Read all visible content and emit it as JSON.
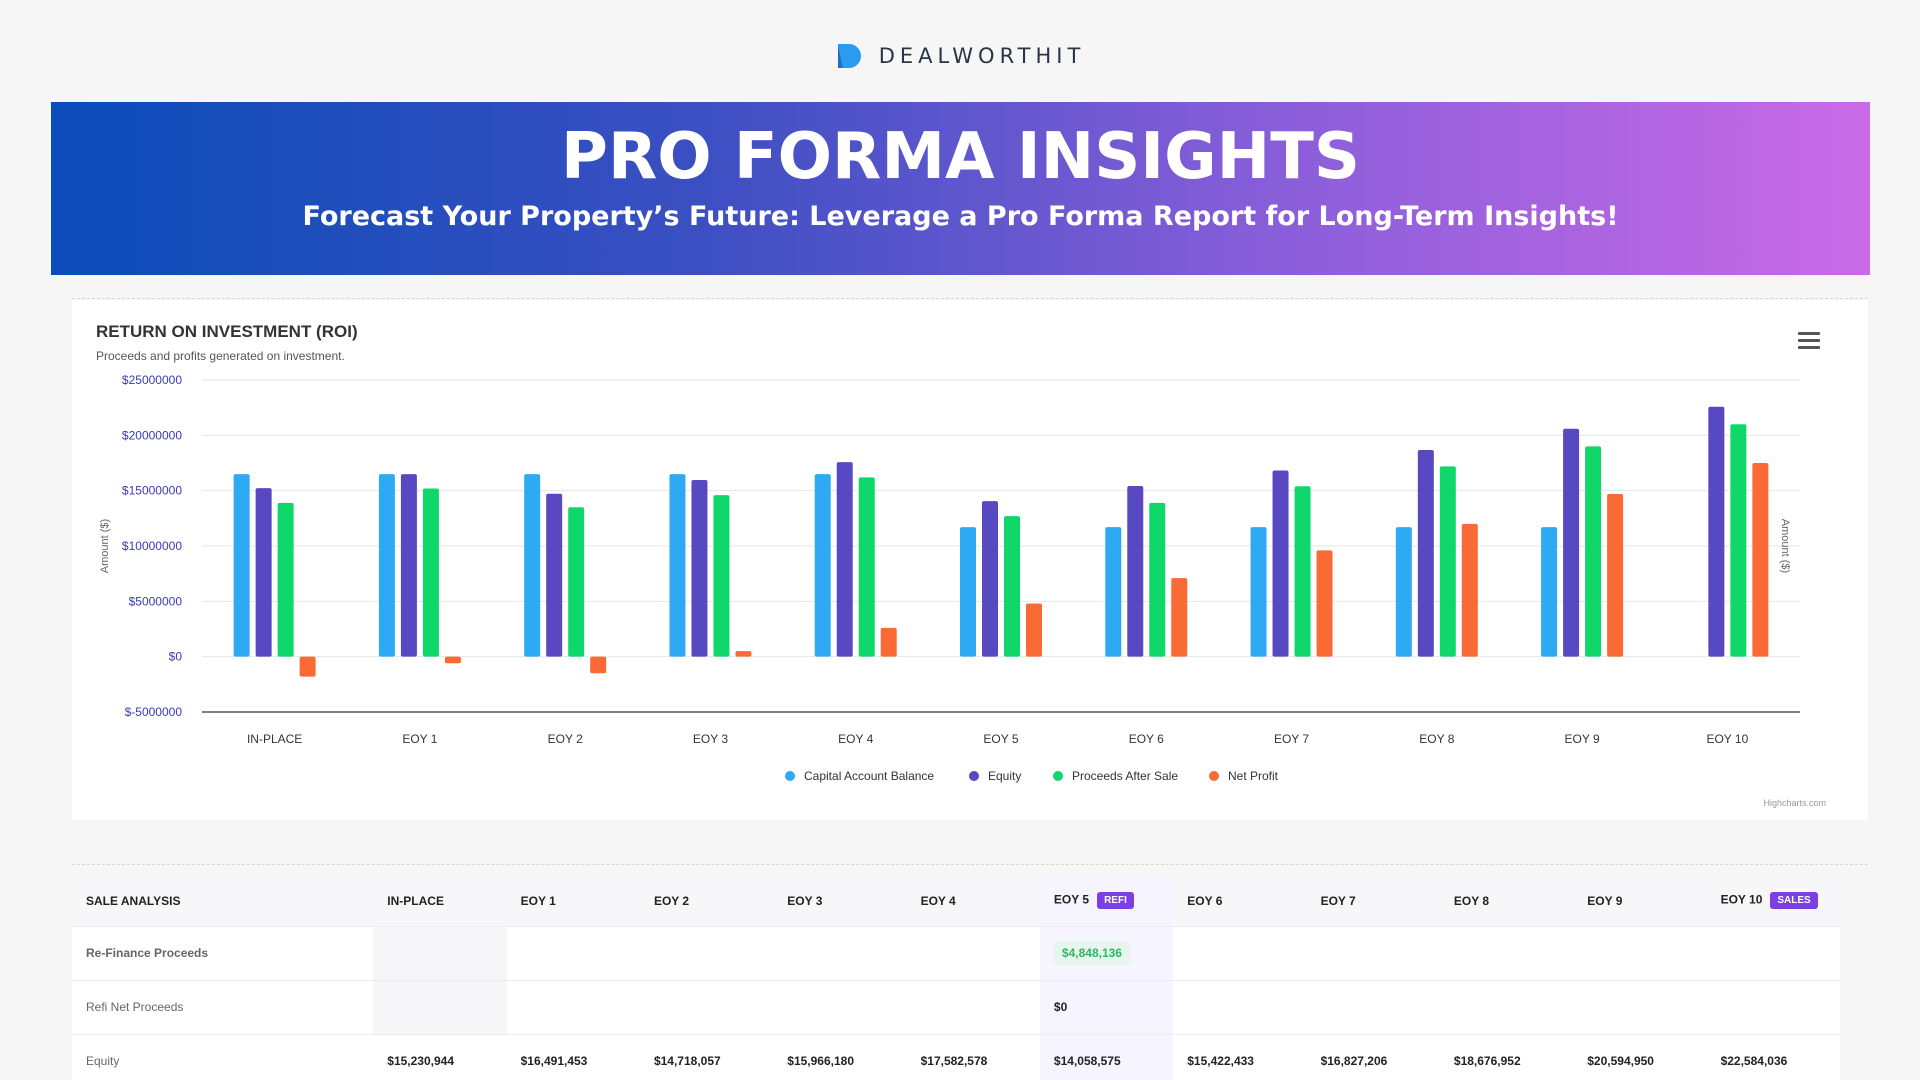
{
  "brand": {
    "name": "DEALWORTHIT",
    "logo_icon": "dealworthit-d-icon",
    "logo_color": "#2b9bf0"
  },
  "banner": {
    "title": "PRO FORMA INSIGHTS",
    "subtitle": "Forecast Your Property’s Future: Leverage a Pro Forma Report for Long-Term Insights!"
  },
  "chart": {
    "credit": "Highcharts.com",
    "menu_icon": "hamburger-menu-icon"
  },
  "chart_data": {
    "type": "bar",
    "title": "RETURN ON INVESTMENT (ROI)",
    "subtitle": "Proceeds and profits generated on investment.",
    "ylabel": "Amount ($)",
    "ylabel_right": "Amount ($)",
    "ylim": [
      -5000000,
      25000000
    ],
    "yticks": [
      25000000,
      20000000,
      15000000,
      10000000,
      5000000,
      0,
      -5000000
    ],
    "ytick_labels": [
      "$25000000",
      "$20000000",
      "$15000000",
      "$10000000",
      "$5000000",
      "$0",
      "$-5000000"
    ],
    "grid": true,
    "legend_position": "bottom-center",
    "categories": [
      "IN-PLACE",
      "EOY 1",
      "EOY 2",
      "EOY 3",
      "EOY 4",
      "EOY 5",
      "EOY 6",
      "EOY 7",
      "EOY 8",
      "EOY 9",
      "EOY 10"
    ],
    "series": [
      {
        "name": "Capital Account Balance",
        "color": "#2eaaf5",
        "values": [
          16500000,
          16500000,
          16500000,
          16500000,
          16500000,
          11700000,
          11700000,
          11700000,
          11700000,
          11700000,
          0
        ]
      },
      {
        "name": "Equity",
        "color": "#5849c2",
        "values": [
          15230944,
          16491453,
          14718057,
          15966180,
          17582578,
          14058575,
          15422433,
          16827206,
          18676952,
          20594950,
          22584036
        ]
      },
      {
        "name": "Proceeds After Sale",
        "color": "#10d76a",
        "values": [
          13900000,
          15200000,
          13500000,
          14600000,
          16200000,
          12700000,
          13900000,
          15400000,
          17200000,
          19000000,
          21000000
        ]
      },
      {
        "name": "Net Profit",
        "color": "#fa6a35",
        "values": [
          -1800000,
          -600000,
          -1500000,
          500000,
          2600000,
          4800000,
          7100000,
          9600000,
          12000000,
          14700000,
          17500000
        ]
      }
    ]
  },
  "table": {
    "header_label": "SALE ANALYSIS",
    "columns": [
      "IN-PLACE",
      "EOY 1",
      "EOY 2",
      "EOY 3",
      "EOY 4",
      "EOY 5",
      "EOY 6",
      "EOY 7",
      "EOY 8",
      "EOY 9",
      "EOY 10"
    ],
    "badges": {
      "eoy5": "REFI",
      "eoy10": "SALES"
    },
    "badge_colors": {
      "refi": "#7b3fe4",
      "sales": "#7b3fe4"
    },
    "rows": {
      "refinance": {
        "label": "Re-Finance Proceeds",
        "eoy5": "$4,848,136"
      },
      "refi_net": {
        "label": "Refi Net Proceeds",
        "eoy5": "$0"
      },
      "equity": {
        "label": "Equity",
        "values": [
          "$15,230,944",
          "$16,491,453",
          "$14,718,057",
          "$15,966,180",
          "$17,582,578",
          "$14,058,575",
          "$15,422,433",
          "$16,827,206",
          "$18,676,952",
          "$20,594,950",
          "$22,584,036"
        ]
      }
    }
  }
}
